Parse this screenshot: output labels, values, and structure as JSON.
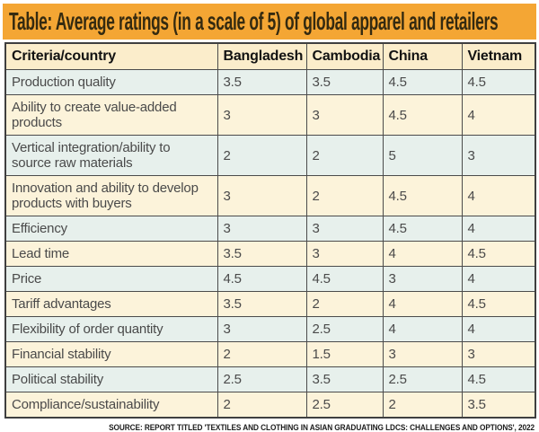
{
  "title": "Table: Average ratings (in a scale of 5) of global apparel and retailers",
  "source_note": "SOURCE: REPORT TITLED 'TEXTILES AND CLOTHING IN ASIAN GRADUATING LDCS: CHALLENGES AND OPTIONS', 2022",
  "colors": {
    "banner_bg": "#F4A634",
    "header_row_bg": "#FBEDCB",
    "row_cream_bg": "#FCF3DA",
    "row_teal_bg": "#E7F0EC",
    "border": "#4b4b4b",
    "body_text": "#4a4a4a",
    "title_text": "#342a10"
  },
  "chart_data": {
    "type": "table",
    "title": "Table: Average ratings (in a scale of 5) of global apparel and retailers",
    "columns": [
      "Criteria/country",
      "Bangladesh",
      "Cambodia",
      "China",
      "Vietnam"
    ],
    "rows": [
      {
        "criteria": "Production quality",
        "values": [
          3.5,
          3.5,
          4.5,
          4.5
        ]
      },
      {
        "criteria": "Ability to create value-added products",
        "values": [
          3,
          3,
          4.5,
          4
        ]
      },
      {
        "criteria": "Vertical integration/ability to source raw materials",
        "values": [
          2,
          2,
          5,
          3
        ]
      },
      {
        "criteria": "Innovation and ability to develop products with buyers",
        "values": [
          3,
          2,
          4.5,
          4
        ]
      },
      {
        "criteria": "Efficiency",
        "values": [
          3,
          3,
          4.5,
          4
        ]
      },
      {
        "criteria": "Lead time",
        "values": [
          3.5,
          3,
          4,
          4.5
        ]
      },
      {
        "criteria": "Price",
        "values": [
          4.5,
          4.5,
          3,
          4
        ]
      },
      {
        "criteria": "Tariff advantages",
        "values": [
          3.5,
          2,
          4,
          4.5
        ]
      },
      {
        "criteria": "Flexibility of order quantity",
        "values": [
          3,
          2.5,
          4,
          4
        ]
      },
      {
        "criteria": "Financial stability",
        "values": [
          2,
          1.5,
          3,
          3
        ]
      },
      {
        "criteria": "Political stability",
        "values": [
          2.5,
          3.5,
          2.5,
          4.5
        ]
      },
      {
        "criteria": "Compliance/sustainability",
        "values": [
          2,
          2.5,
          2,
          3.5
        ]
      }
    ]
  }
}
